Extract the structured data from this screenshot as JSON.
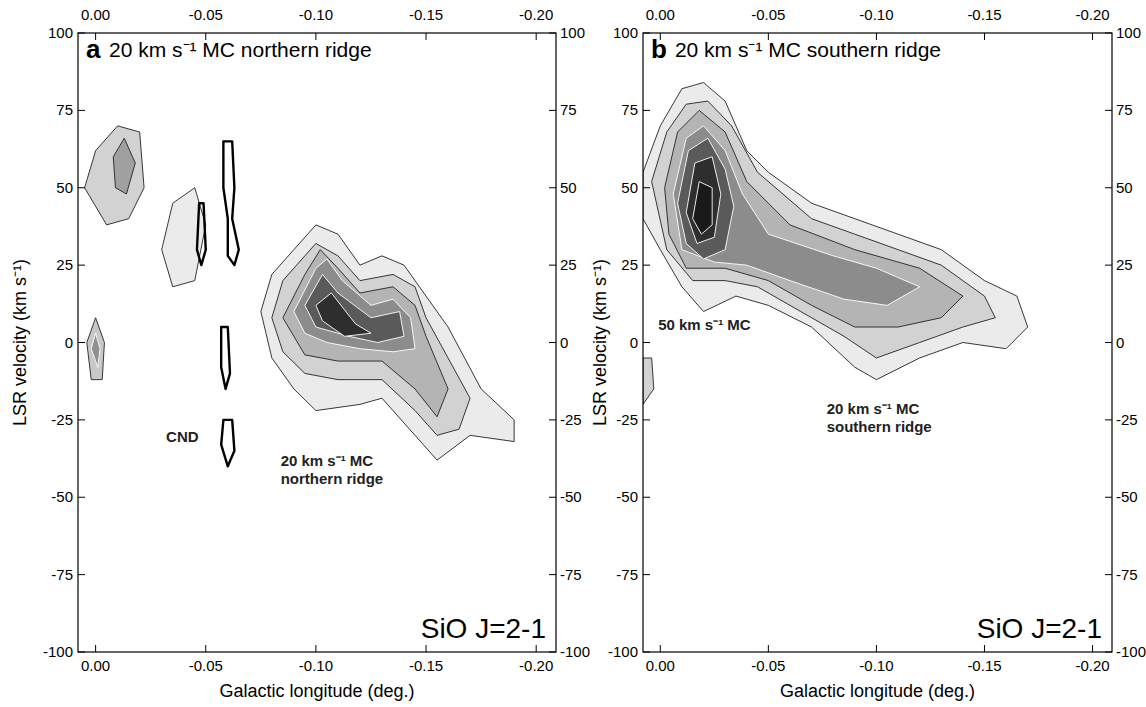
{
  "chart_data": [
    {
      "type": "contour",
      "panel": "a",
      "title": "20 km s⁻¹ MC northern ridge",
      "x_label": "Galactic longitude (deg.)",
      "y_label": "LSR velocity (km s⁻¹)",
      "xlim": [
        0.008,
        -0.209
      ],
      "ylim": [
        -100,
        100
      ],
      "xticks": [
        {
          "value": 0,
          "label": "0.00"
        },
        -0.05,
        {
          "value": -0.1,
          "label": "-0.10"
        },
        -0.15,
        {
          "value": -0.2,
          "label": "-0.20"
        }
      ],
      "yticks": [
        -100,
        -75,
        -50,
        -25,
        0,
        25,
        50,
        75,
        100
      ],
      "annotations": [
        {
          "text": "CND"
        },
        {
          "text": "20 km s⁻¹ MC northern ridge"
        },
        {
          "text": "SiO J=2-1"
        }
      ],
      "regions": [
        {
          "color": "#ebebeb",
          "x": [
            -0.03,
            -0.035,
            -0.045,
            -0.05,
            -0.045,
            -0.035
          ],
          "y": [
            30,
            45,
            50,
            38,
            20,
            18
          ]
        },
        {
          "color": "#d2d2d2",
          "x": [
            0.005,
            0.0,
            -0.01,
            -0.02,
            -0.022,
            -0.015,
            -0.005
          ],
          "y": [
            50,
            62,
            70,
            68,
            50,
            40,
            38
          ]
        },
        {
          "color": "#a0a0a0",
          "x": [
            -0.008,
            -0.013,
            -0.018,
            -0.014,
            -0.009
          ],
          "y": [
            60,
            66,
            58,
            48,
            50
          ]
        },
        {
          "color": "#c8c8c8",
          "x": [
            0.004,
            0.0,
            -0.004,
            -0.003,
            0.002
          ],
          "y": [
            0,
            8,
            0,
            -12,
            -12
          ]
        },
        {
          "color": "#909090",
          "x": [
            0.002,
            0.0,
            -0.002,
            -0.001
          ],
          "y": [
            -2,
            3,
            -2,
            -8
          ]
        },
        {
          "color": "#ebebeb",
          "x": [
            -0.075,
            -0.08,
            -0.09,
            -0.1,
            -0.11,
            -0.12,
            -0.13,
            -0.14,
            -0.15,
            -0.16,
            -0.175,
            -0.19,
            -0.19,
            -0.17,
            -0.155,
            -0.145,
            -0.13,
            -0.12,
            -0.1,
            -0.09,
            -0.08
          ],
          "y": [
            10,
            22,
            30,
            38,
            35,
            25,
            28,
            25,
            15,
            5,
            -15,
            -25,
            -32,
            -30,
            -38,
            -30,
            -18,
            -20,
            -22,
            -15,
            -5
          ]
        },
        {
          "color": "#d2d2d2",
          "x": [
            -0.08,
            -0.085,
            -0.095,
            -0.1,
            -0.11,
            -0.12,
            -0.135,
            -0.145,
            -0.15,
            -0.16,
            -0.17,
            -0.165,
            -0.155,
            -0.145,
            -0.13,
            -0.11,
            -0.095,
            -0.085
          ],
          "y": [
            8,
            20,
            28,
            32,
            28,
            20,
            22,
            18,
            8,
            -5,
            -18,
            -28,
            -30,
            -22,
            -12,
            -12,
            -10,
            -3
          ]
        },
        {
          "color": "#b4b4b4",
          "x": [
            -0.085,
            -0.095,
            -0.102,
            -0.11,
            -0.12,
            -0.135,
            -0.145,
            -0.15,
            -0.16,
            -0.155,
            -0.145,
            -0.13,
            -0.11,
            -0.095
          ],
          "y": [
            8,
            22,
            30,
            24,
            16,
            18,
            12,
            2,
            -15,
            -24,
            -15,
            -6,
            -6,
            -4
          ]
        },
        {
          "color": "#8c8c8c",
          "x": [
            -0.09,
            -0.1,
            -0.105,
            -0.112,
            -0.125,
            -0.135,
            -0.143,
            -0.145,
            -0.135,
            -0.12,
            -0.105,
            -0.095
          ],
          "y": [
            10,
            24,
            27,
            20,
            12,
            14,
            8,
            -2,
            -3,
            -2,
            0,
            3
          ]
        },
        {
          "color": "#5a5a5a",
          "x": [
            -0.095,
            -0.103,
            -0.11,
            -0.125,
            -0.138,
            -0.14,
            -0.128,
            -0.115,
            -0.1
          ],
          "y": [
            12,
            22,
            16,
            8,
            10,
            2,
            0,
            2,
            5
          ]
        },
        {
          "color": "#2e2e2e",
          "x": [
            -0.1,
            -0.107,
            -0.118,
            -0.125,
            -0.113,
            -0.103
          ],
          "y": [
            12,
            16,
            6,
            3,
            2,
            7
          ]
        },
        {
          "type": "line",
          "x": [
            -0.058,
            -0.062,
            -0.063,
            -0.062,
            -0.065,
            -0.063,
            -0.06,
            -0.06,
            -0.058
          ],
          "y": [
            65,
            65,
            50,
            40,
            30,
            25,
            28,
            40,
            50
          ]
        },
        {
          "type": "line",
          "x": [
            -0.047,
            -0.049,
            -0.05,
            -0.048,
            -0.046
          ],
          "y": [
            45,
            45,
            30,
            25,
            30
          ]
        },
        {
          "type": "line",
          "x": [
            -0.057,
            -0.06,
            -0.061,
            -0.059,
            -0.057
          ],
          "y": [
            5,
            5,
            -10,
            -15,
            -8
          ]
        },
        {
          "type": "line",
          "x": [
            -0.058,
            -0.062,
            -0.063,
            -0.06,
            -0.057
          ],
          "y": [
            -25,
            -25,
            -35,
            -40,
            -33
          ]
        }
      ]
    },
    {
      "type": "contour",
      "panel": "b",
      "title": "20 km s⁻¹ MC southern ridge",
      "x_label": "Galactic longitude (deg.)",
      "y_label": "LSR velocity (km s⁻¹)",
      "xlim": [
        0.008,
        -0.209
      ],
      "ylim": [
        -100,
        100
      ],
      "xticks": [
        {
          "value": 0,
          "label": "0.00"
        },
        -0.05,
        {
          "value": -0.1,
          "label": "-0.10"
        },
        -0.15,
        {
          "value": -0.2,
          "label": "-0.20"
        }
      ],
      "yticks": [
        -100,
        -75,
        -50,
        -25,
        0,
        25,
        50,
        75,
        100
      ],
      "annotations": [
        {
          "text": "50 km s⁻¹ MC"
        },
        {
          "text": "20 km s⁻¹ MC southern ridge"
        },
        {
          "text": "SiO J=2-1"
        }
      ],
      "regions": [
        {
          "color": "#d2d2d2",
          "x": [
            0.008,
            0.004,
            0.003,
            0.008
          ],
          "y": [
            -5,
            -5,
            -15,
            -20
          ]
        },
        {
          "color": "#ebebeb",
          "x": [
            0.008,
            0.0,
            -0.01,
            -0.02,
            -0.03,
            -0.04,
            -0.05,
            -0.07,
            -0.09,
            -0.11,
            -0.13,
            -0.15,
            -0.165,
            -0.17,
            -0.16,
            -0.14,
            -0.12,
            -0.1,
            -0.09,
            -0.07,
            -0.05,
            -0.035,
            -0.02,
            -0.01,
            0.0,
            0.008
          ],
          "y": [
            55,
            70,
            82,
            84,
            78,
            62,
            55,
            45,
            40,
            35,
            30,
            20,
            15,
            5,
            -2,
            0,
            -5,
            -12,
            -8,
            5,
            12,
            15,
            10,
            18,
            30,
            40
          ]
        },
        {
          "color": "#d2d2d2",
          "x": [
            0.004,
            -0.003,
            -0.012,
            -0.022,
            -0.033,
            -0.045,
            -0.07,
            -0.09,
            -0.11,
            -0.13,
            -0.15,
            -0.155,
            -0.14,
            -0.12,
            -0.1,
            -0.085,
            -0.065,
            -0.045,
            -0.03,
            -0.015,
            -0.003
          ],
          "y": [
            52,
            68,
            77,
            78,
            70,
            55,
            40,
            35,
            30,
            25,
            15,
            8,
            5,
            0,
            -5,
            2,
            10,
            18,
            20,
            20,
            30
          ]
        },
        {
          "color": "#b4b4b4",
          "x": [
            -0.002,
            -0.008,
            -0.018,
            -0.03,
            -0.04,
            -0.06,
            -0.09,
            -0.12,
            -0.14,
            -0.13,
            -0.11,
            -0.09,
            -0.07,
            -0.05,
            -0.03,
            -0.012,
            -0.004
          ],
          "y": [
            50,
            68,
            75,
            68,
            52,
            38,
            30,
            24,
            15,
            8,
            5,
            5,
            12,
            20,
            24,
            24,
            35
          ]
        },
        {
          "color": "#8c8c8c",
          "x": [
            -0.006,
            -0.012,
            -0.02,
            -0.03,
            -0.038,
            -0.05,
            -0.08,
            -0.1,
            -0.12,
            -0.105,
            -0.085,
            -0.06,
            -0.04,
            -0.025,
            -0.01
          ],
          "y": [
            48,
            66,
            70,
            62,
            48,
            35,
            28,
            24,
            18,
            12,
            14,
            20,
            25,
            26,
            30
          ]
        },
        {
          "color": "#5a5a5a",
          "x": [
            -0.008,
            -0.013,
            -0.022,
            -0.03,
            -0.034,
            -0.03,
            -0.02,
            -0.012
          ],
          "y": [
            45,
            62,
            66,
            56,
            44,
            30,
            27,
            32
          ]
        },
        {
          "color": "#2e2e2e",
          "x": [
            -0.012,
            -0.016,
            -0.024,
            -0.028,
            -0.025,
            -0.017
          ],
          "y": [
            42,
            58,
            60,
            48,
            34,
            32
          ]
        },
        {
          "color": "#1a1a1a",
          "x": [
            -0.015,
            -0.018,
            -0.024,
            -0.024,
            -0.019
          ],
          "y": [
            40,
            52,
            50,
            38,
            35
          ]
        }
      ]
    }
  ]
}
